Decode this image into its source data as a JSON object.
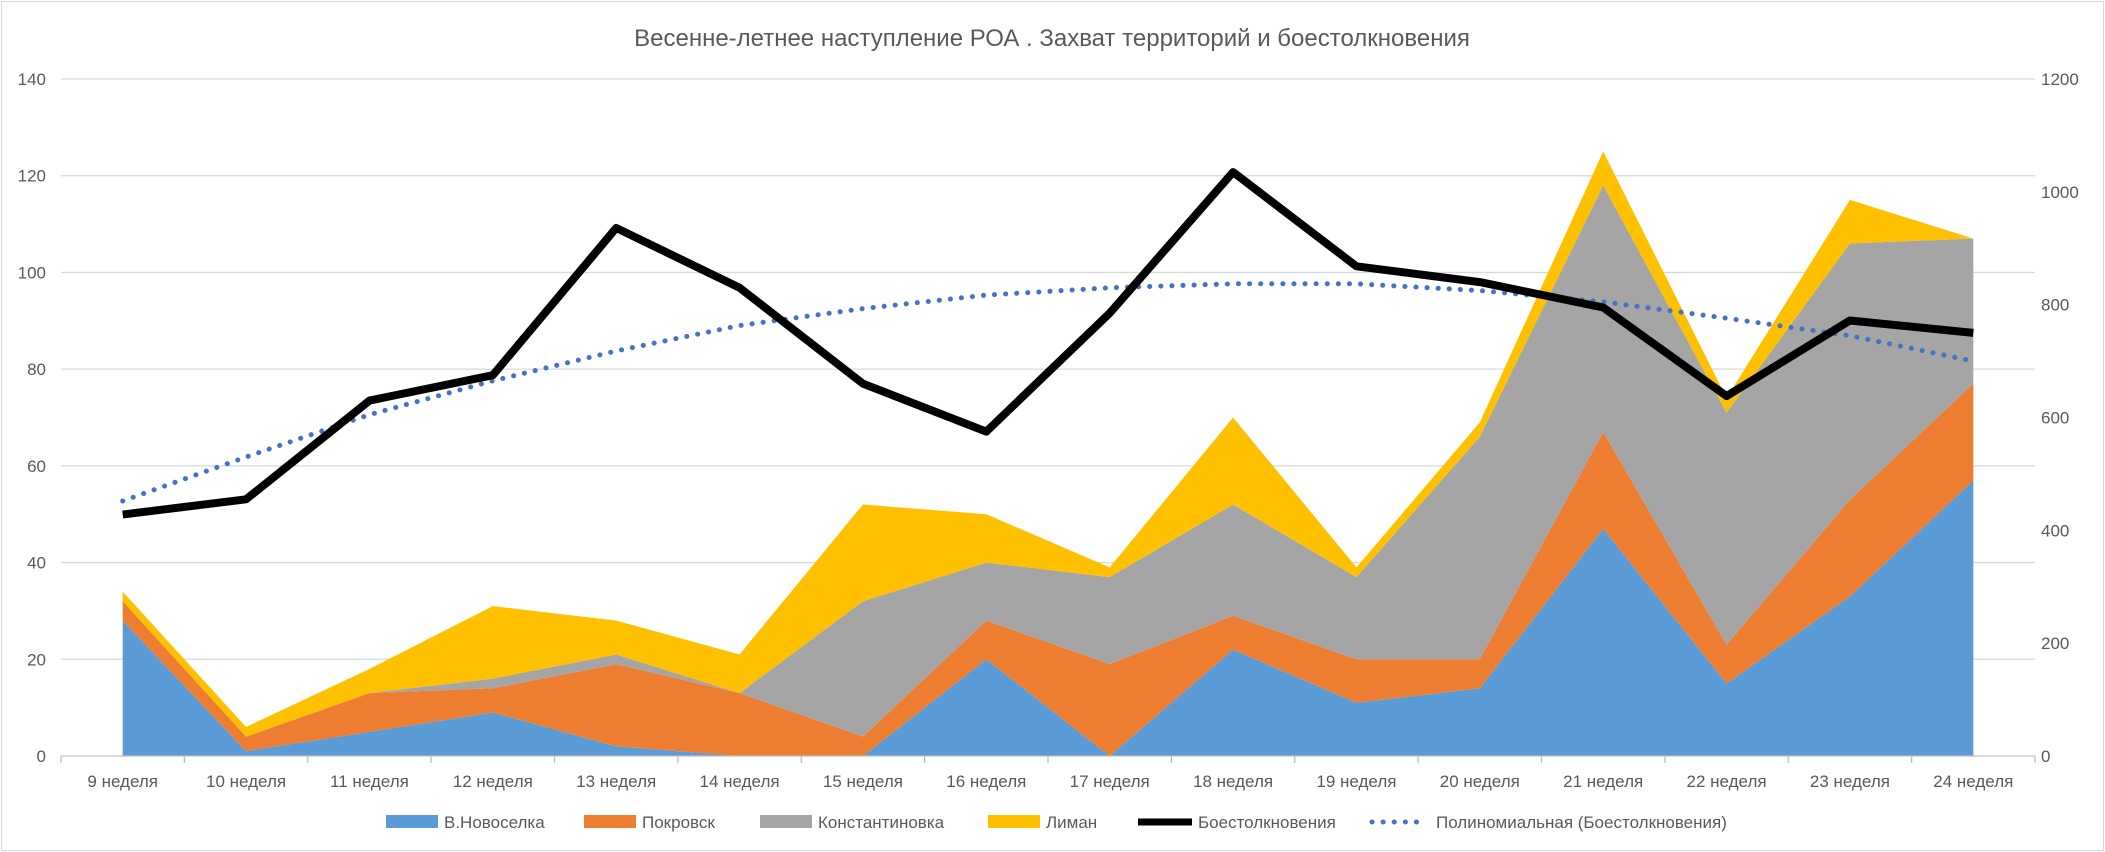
{
  "chart_data": {
    "type": "area",
    "title": "Весенне-летнее наступление РОА . Захват территорий и боестолкновения",
    "categories": [
      "9 неделя",
      "10 неделя",
      "11 неделя",
      "12 неделя",
      "13 неделя",
      "14 неделя",
      "15 неделя",
      "16 неделя",
      "17 неделя",
      "18 неделя",
      "19 неделя",
      "20 неделя",
      "21 неделя",
      "22 неделя",
      "23 неделя",
      "24 неделя"
    ],
    "stacked_series": [
      {
        "name": "В.Новоселка",
        "color": "#5b9bd5",
        "values": [
          28,
          1,
          5,
          9,
          2,
          0,
          0,
          20,
          0,
          22,
          11,
          14,
          47,
          15,
          33,
          57
        ]
      },
      {
        "name": "Покровск",
        "color": "#ed7d31",
        "values": [
          4,
          3,
          8,
          5,
          17,
          13,
          4,
          8,
          19,
          7,
          9,
          6,
          20,
          8,
          20,
          20
        ]
      },
      {
        "name": "Константиновка",
        "color": "#a5a5a5",
        "values": [
          0,
          0,
          0,
          2,
          2,
          0,
          28,
          12,
          18,
          23,
          17,
          46,
          51,
          48,
          53,
          30
        ]
      },
      {
        "name": "Лиман",
        "color": "#ffc000",
        "values": [
          2,
          2,
          5,
          15,
          7,
          8,
          20,
          10,
          2,
          18,
          2,
          3,
          7,
          3,
          9,
          0
        ]
      }
    ],
    "line_series": {
      "name": "Боестолкновения",
      "color": "#000000",
      "axis": "right",
      "values": [
        428,
        455,
        630,
        675,
        936,
        830,
        660,
        575,
        785,
        1035,
        868,
        840,
        795,
        638,
        772,
        750
      ]
    },
    "trend_series": {
      "name": "Полиномиальная (Боестолкновения)",
      "color": "#4472c4",
      "style": "dotted",
      "axis": "right",
      "values": [
        452,
        530,
        605,
        665,
        718,
        763,
        793,
        817,
        830,
        837,
        837,
        825,
        805,
        776,
        745,
        700
      ]
    },
    "y_left": {
      "min": 0,
      "max": 140,
      "ticks": [
        "0",
        "20",
        "40",
        "60",
        "80",
        "100",
        "120",
        "140"
      ]
    },
    "y_right": {
      "min": 0,
      "max": 1200,
      "ticks": [
        "0",
        "200",
        "400",
        "600",
        "800",
        "1000",
        "1200"
      ]
    },
    "grid": true,
    "legend_position": "bottom"
  }
}
